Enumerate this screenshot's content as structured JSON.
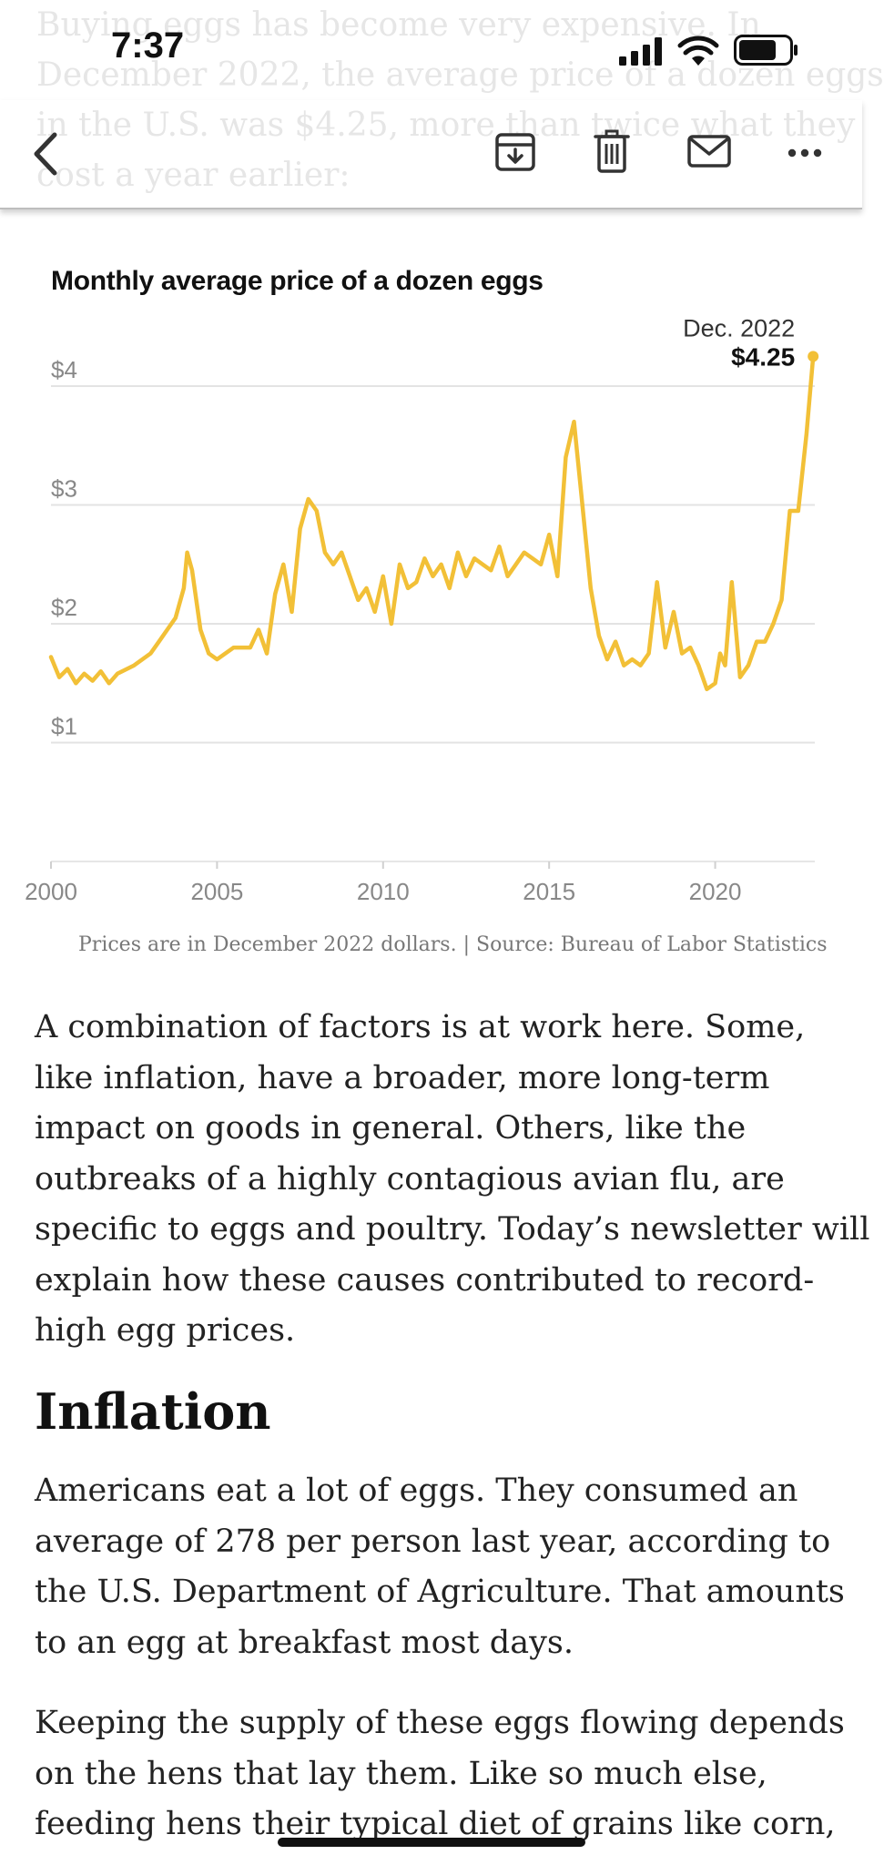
{
  "status_bar": {
    "time": "7:37"
  },
  "ghost_lines": [
    "Buying eggs has become very expensive. In",
    "December 2022, the average price of a dozen eggs",
    "in the U.S. was $4.25, more than twice what they",
    "cost a year earlier:"
  ],
  "toolbar": {
    "back_icon": "chevron-left-icon",
    "archive_icon": "archive-icon",
    "trash_icon": "trash-icon",
    "mail_icon": "mail-icon",
    "more_icon": "more-icon"
  },
  "chart_title": "Monthly average price of a dozen eggs",
  "caption": "Prices are in December 2022 dollars. | Source: Bureau of Labor Statistics",
  "chart_data": {
    "type": "line",
    "title": "Monthly average price of a dozen eggs",
    "xlabel": "",
    "ylabel": "",
    "xlim": [
      2000,
      2023
    ],
    "ylim": [
      0,
      4
    ],
    "y_ticks": [
      {
        "value": 4,
        "label": "$4"
      },
      {
        "value": 3,
        "label": "$3"
      },
      {
        "value": 2,
        "label": "$2"
      },
      {
        "value": 1,
        "label": "$1"
      }
    ],
    "x_ticks": [
      {
        "value": 2000,
        "label": "2000"
      },
      {
        "value": 2005,
        "label": "2005"
      },
      {
        "value": 2010,
        "label": "2010"
      },
      {
        "value": 2015,
        "label": "2015"
      },
      {
        "value": 2020,
        "label": "2020"
      }
    ],
    "color": "#F2C037",
    "annotation": {
      "x": 2022.95,
      "y": 4.25,
      "label_date": "Dec. 2022",
      "label_value": "$4.25"
    },
    "series": [
      {
        "name": "Price of a dozen eggs",
        "x": [
          2000.0,
          2000.25,
          2000.5,
          2000.75,
          2001.0,
          2001.25,
          2001.5,
          2001.75,
          2002.0,
          2002.5,
          2003.0,
          2003.25,
          2003.5,
          2003.75,
          2004.0,
          2004.1,
          2004.25,
          2004.5,
          2004.75,
          2005.0,
          2005.5,
          2006.0,
          2006.25,
          2006.5,
          2006.75,
          2007.0,
          2007.25,
          2007.5,
          2007.75,
          2008.0,
          2008.25,
          2008.5,
          2008.75,
          2009.0,
          2009.25,
          2009.5,
          2009.75,
          2010.0,
          2010.25,
          2010.5,
          2010.75,
          2011.0,
          2011.25,
          2011.5,
          2011.75,
          2012.0,
          2012.25,
          2012.5,
          2012.75,
          2013.0,
          2013.25,
          2013.5,
          2013.75,
          2014.0,
          2014.25,
          2014.5,
          2014.75,
          2015.0,
          2015.25,
          2015.5,
          2015.75,
          2016.0,
          2016.25,
          2016.5,
          2016.75,
          2017.0,
          2017.25,
          2017.5,
          2017.75,
          2018.0,
          2018.25,
          2018.5,
          2018.75,
          2019.0,
          2019.25,
          2019.5,
          2019.75,
          2020.0,
          2020.15,
          2020.3,
          2020.5,
          2020.75,
          2021.0,
          2021.25,
          2021.5,
          2021.75,
          2022.0,
          2022.25,
          2022.5,
          2022.75,
          2022.95
        ],
        "values": [
          1.72,
          1.55,
          1.62,
          1.5,
          1.58,
          1.52,
          1.6,
          1.5,
          1.58,
          1.65,
          1.75,
          1.85,
          1.95,
          2.05,
          2.3,
          2.6,
          2.45,
          1.95,
          1.75,
          1.7,
          1.8,
          1.8,
          1.95,
          1.75,
          2.25,
          2.5,
          2.1,
          2.8,
          3.05,
          2.95,
          2.6,
          2.5,
          2.6,
          2.4,
          2.2,
          2.3,
          2.1,
          2.4,
          2.0,
          2.5,
          2.3,
          2.35,
          2.55,
          2.4,
          2.5,
          2.3,
          2.6,
          2.4,
          2.55,
          2.5,
          2.45,
          2.65,
          2.4,
          2.5,
          2.6,
          2.55,
          2.5,
          2.75,
          2.4,
          3.4,
          3.7,
          3.0,
          2.3,
          1.9,
          1.7,
          1.85,
          1.65,
          1.7,
          1.65,
          1.75,
          2.35,
          1.8,
          2.1,
          1.75,
          1.8,
          1.65,
          1.45,
          1.5,
          1.75,
          1.65,
          2.35,
          1.55,
          1.65,
          1.85,
          1.85,
          2.0,
          2.2,
          2.95,
          2.95,
          3.6,
          4.25
        ]
      }
    ]
  },
  "paragraphs": [
    {
      "lines": [
        "A combination of factors is at work here. Some,",
        "like inflation, have a broader, more long-term",
        "impact on goods in general. Others, like the",
        "outbreaks of a highly contagious avian flu, are",
        "specific to eggs and poultry. Today’s newsletter will",
        "explain how these causes contributed to record-",
        "high egg prices."
      ]
    },
    {
      "lines": [
        "Americans eat a lot of eggs. They consumed an",
        "average of 278 per person last year, according to",
        "the U.S. Department of Agriculture. That amounts",
        "to an egg at breakfast most days."
      ]
    },
    {
      "lines": [
        "Keeping the supply of these eggs flowing depends",
        "on the hens that lay them. Like so much else,",
        "feeding hens their typical diet of grains like corn,"
      ]
    }
  ],
  "heading": "Inflation"
}
